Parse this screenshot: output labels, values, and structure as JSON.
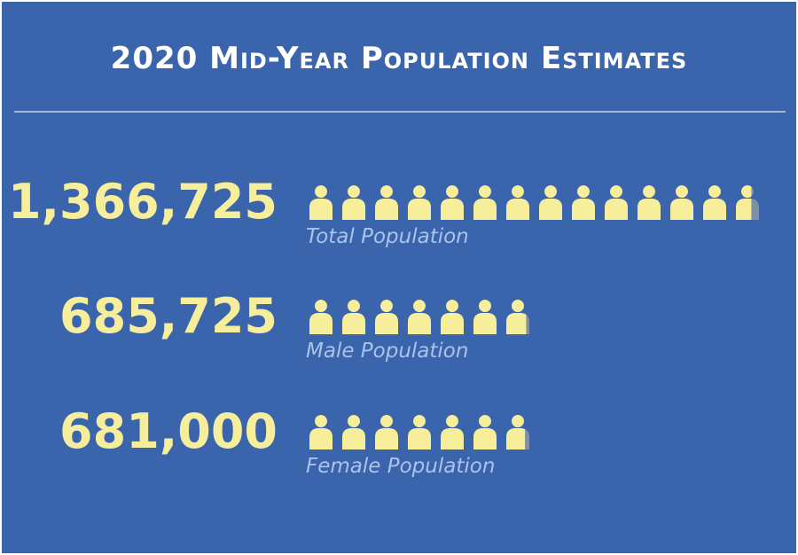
{
  "colors": {
    "background": "#3a64ac",
    "title": "#ffffff",
    "value": "#f6ee9b",
    "icon": "#f6ee9b",
    "label": "#a9c3ea",
    "rule": "#a7b6d6"
  },
  "icon": "person-icon",
  "chart_data": {
    "type": "pictograph",
    "title": "2020 Mid-Year Population Estimates",
    "unit_per_icon": 100000,
    "rows": [
      {
        "value": "1,366,725",
        "label": "Total Population",
        "icon_count": 13.67
      },
      {
        "value": "685,725",
        "label": "Male Population",
        "icon_count": 6.86
      },
      {
        "value": "681,000",
        "label": "Female Population",
        "icon_count": 6.81
      }
    ]
  }
}
